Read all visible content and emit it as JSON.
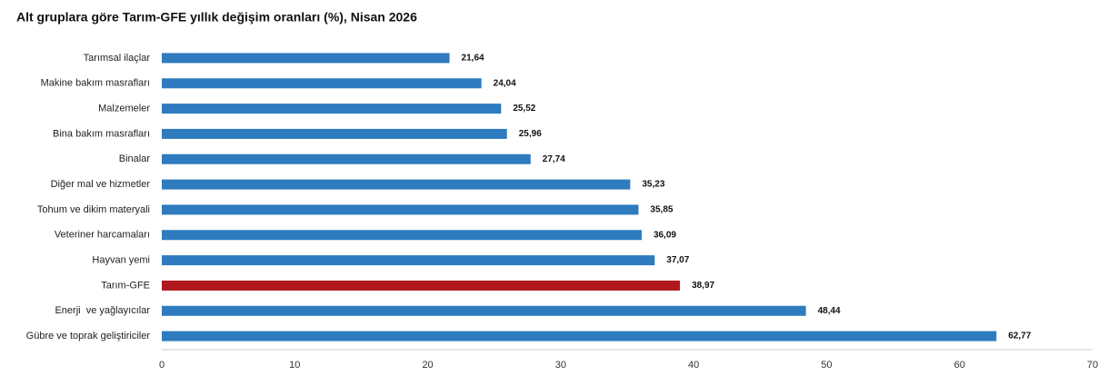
{
  "chart_data": {
    "type": "barh",
    "title": "Alt gruplara göre Tarım-GFE yıllık değişim oranları (%), Nisan 2026",
    "categories": [
      "Tarımsal ilaçlar",
      "Makine bakım masrafları",
      "Malzemeler",
      "Bina bakım masrafları",
      "Binalar",
      "Diğer mal ve hizmetler",
      "Tohum ve dikim materyali",
      "Veteriner harcamaları",
      "Hayvan yemi",
      "Tarım-GFE",
      "Enerji  ve yağlayıcılar",
      "Gübre ve toprak geliştiriciler"
    ],
    "values": [
      21.64,
      24.04,
      25.52,
      25.96,
      27.74,
      35.23,
      35.85,
      36.09,
      37.07,
      38.97,
      48.44,
      62.77
    ],
    "value_labels": [
      "21,64",
      "24,04",
      "25,52",
      "25,96",
      "27,74",
      "35,23",
      "35,85",
      "36,09",
      "37,07",
      "38,97",
      "48,44",
      "62,77"
    ],
    "colors": [
      "#2e7bbf",
      "#2e7bbf",
      "#2e7bbf",
      "#2e7bbf",
      "#2e7bbf",
      "#2e7bbf",
      "#2e7bbf",
      "#2e7bbf",
      "#2e7bbf",
      "#b0181e",
      "#2e7bbf",
      "#2e7bbf"
    ],
    "xlim": [
      0,
      70
    ],
    "xticks": [
      0,
      10,
      20,
      30,
      40,
      50,
      60,
      70
    ],
    "grid": false
  }
}
